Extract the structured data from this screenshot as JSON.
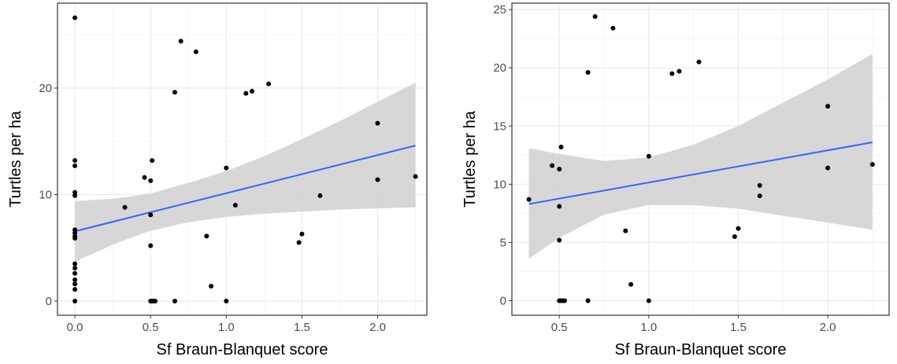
{
  "chart_data": [
    {
      "type": "scatter",
      "xlabel": "Sf Braun-Blanquet score",
      "ylabel": "Turtles per ha",
      "xlim": [
        -0.115,
        2.325
      ],
      "ylim": [
        -1.33,
        27.97
      ],
      "xticks": [
        0.0,
        0.5,
        1.0,
        1.5,
        2.0
      ],
      "xtick_labels": [
        "0.0",
        "0.5",
        "1.0",
        "1.5",
        "2.0"
      ],
      "yticks": [
        0,
        10,
        20
      ],
      "ytick_labels": [
        "0",
        "10",
        "20"
      ],
      "grid": true,
      "legend": "none",
      "series": [
        {
          "points": [
            [
              0,
              26.6
            ],
            [
              0,
              13.2
            ],
            [
              0,
              12.7
            ],
            [
              0,
              10.2
            ],
            [
              0,
              9.9
            ],
            [
              0,
              6.7
            ],
            [
              0,
              6.4
            ],
            [
              0,
              6.1
            ],
            [
              0,
              5.9
            ],
            [
              0,
              3.5
            ],
            [
              0,
              3.1
            ],
            [
              0,
              2.6
            ],
            [
              0,
              2.0
            ],
            [
              0,
              1.6
            ],
            [
              0,
              1.1
            ],
            [
              0,
              0
            ],
            [
              0.33,
              8.8
            ],
            [
              0.46,
              11.6
            ],
            [
              0.5,
              11.3
            ],
            [
              0.5,
              8.1
            ],
            [
              0.5,
              5.2
            ],
            [
              0.51,
              13.2
            ],
            [
              0.5,
              0
            ],
            [
              0.51,
              0
            ],
            [
              0.52,
              0
            ],
            [
              0.53,
              0
            ],
            [
              0.66,
              0
            ],
            [
              0.66,
              19.6
            ],
            [
              0.7,
              24.4
            ],
            [
              0.8,
              23.4
            ],
            [
              0.87,
              6.1
            ],
            [
              0.9,
              1.4
            ],
            [
              1.0,
              12.5
            ],
            [
              1.0,
              0
            ],
            [
              1.06,
              9.0
            ],
            [
              1.13,
              19.5
            ],
            [
              1.17,
              19.7
            ],
            [
              1.28,
              20.4
            ],
            [
              1.48,
              5.5
            ],
            [
              1.5,
              6.3
            ],
            [
              1.62,
              9.9
            ],
            [
              2.0,
              16.7
            ],
            [
              2.0,
              11.4
            ],
            [
              2.25,
              11.7
            ]
          ]
        }
      ],
      "fit_line": {
        "x": [
          0,
          2.25
        ],
        "y": [
          6.55,
          14.6
        ]
      },
      "confidence_band": {
        "x": [
          0,
          0.25,
          0.5,
          0.75,
          1.0,
          1.25,
          1.5,
          1.75,
          2.0,
          2.25
        ],
        "lower": [
          3.7,
          5.3,
          6.6,
          7.4,
          7.9,
          8.2,
          8.4,
          8.6,
          8.7,
          8.8
        ],
        "upper": [
          9.4,
          9.6,
          10.1,
          11.1,
          12.2,
          13.6,
          15.2,
          16.9,
          18.7,
          20.5
        ]
      },
      "colors": {
        "points": "#000000",
        "fit_line": "#3366ff",
        "band": "#d3d3d3",
        "panel_border": "#333333",
        "grid": "#ebebeb"
      }
    },
    {
      "type": "scatter",
      "xlabel": "Sf Braun-Blanquet score",
      "ylabel": "Turtles per ha",
      "xlim": [
        0.235,
        2.343
      ],
      "ylim": [
        -1.25,
        25.55
      ],
      "xticks": [
        0.5,
        1.0,
        1.5,
        2.0
      ],
      "xtick_labels": [
        "0.5",
        "1.0",
        "1.5",
        "2.0"
      ],
      "yticks": [
        0,
        5,
        10,
        15,
        20,
        25
      ],
      "ytick_labels": [
        "0",
        "5",
        "10",
        "15",
        "20",
        "25"
      ],
      "grid": true,
      "legend": "none",
      "series": [
        {
          "points": [
            [
              0.33,
              8.7
            ],
            [
              0.46,
              11.6
            ],
            [
              0.5,
              11.3
            ],
            [
              0.5,
              8.1
            ],
            [
              0.5,
              5.2
            ],
            [
              0.51,
              13.2
            ],
            [
              0.5,
              0
            ],
            [
              0.51,
              0
            ],
            [
              0.52,
              0
            ],
            [
              0.53,
              0
            ],
            [
              0.66,
              0
            ],
            [
              0.66,
              19.6
            ],
            [
              0.7,
              24.4
            ],
            [
              0.8,
              23.4
            ],
            [
              0.87,
              6.0
            ],
            [
              0.9,
              1.4
            ],
            [
              1.0,
              12.4
            ],
            [
              1.0,
              0
            ],
            [
              1.13,
              19.5
            ],
            [
              1.17,
              19.7
            ],
            [
              1.28,
              20.5
            ],
            [
              1.48,
              5.5
            ],
            [
              1.5,
              6.2
            ],
            [
              1.62,
              9.9
            ],
            [
              1.62,
              9.0
            ],
            [
              2.0,
              16.7
            ],
            [
              2.0,
              11.4
            ],
            [
              2.25,
              11.7
            ]
          ]
        }
      ],
      "fit_line": {
        "x": [
          0.33,
          2.25
        ],
        "y": [
          8.3,
          13.6
        ]
      },
      "confidence_band": {
        "x": [
          0.33,
          0.5,
          0.75,
          1.0,
          1.25,
          1.5,
          1.75,
          2.0,
          2.25
        ],
        "lower": [
          3.6,
          5.4,
          7.4,
          8.2,
          8.2,
          7.9,
          7.3,
          6.7,
          6.1
        ],
        "upper": [
          13.1,
          12.6,
          12.0,
          12.3,
          13.4,
          15.0,
          17.0,
          19.0,
          21.2
        ]
      },
      "colors": {
        "points": "#000000",
        "fit_line": "#3366ff",
        "band": "#d3d3d3",
        "panel_border": "#333333",
        "grid": "#ebebeb"
      }
    }
  ]
}
